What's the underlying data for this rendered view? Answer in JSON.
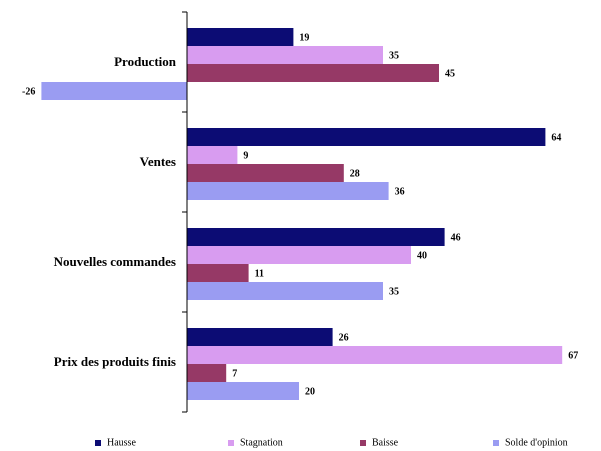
{
  "chart_data": {
    "type": "bar",
    "orientation": "horizontal",
    "categories": [
      "Production",
      "Ventes",
      "Nouvelles commandes",
      "Prix des produits finis"
    ],
    "series": [
      {
        "name": "Hausse",
        "color": "#0c0c74",
        "values": [
          19,
          64,
          46,
          26
        ]
      },
      {
        "name": "Stagnation",
        "color": "#d89cf0",
        "values": [
          35,
          9,
          40,
          67
        ]
      },
      {
        "name": "Baisse",
        "color": "#963966",
        "values": [
          45,
          28,
          11,
          7
        ]
      },
      {
        "name": "Solde d'opinion",
        "color": "#9a9cf2",
        "values": [
          -26,
          36,
          35,
          20
        ]
      }
    ],
    "xlim": [
      -27,
      68
    ],
    "grid": false,
    "legend_position": "bottom"
  }
}
